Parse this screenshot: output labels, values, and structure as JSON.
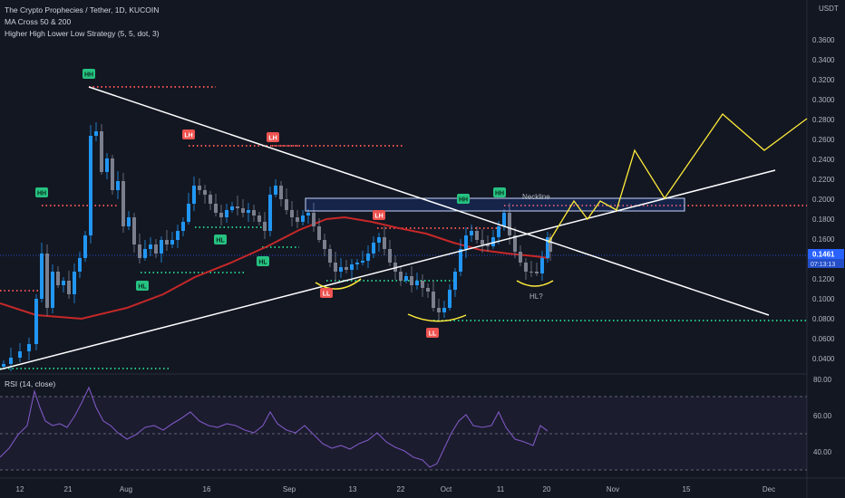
{
  "header": {
    "symbol_line": "The Crypto Prophecies / Tether, 1D, KUCOIN",
    "indicator_1": "MA Cross 50 & 200",
    "indicator_2": "Higher High Lower Low Strategy (5, 5, dot, 3)",
    "currency": "USDT"
  },
  "price_scale": {
    "ticks": [
      "0.3600",
      "0.3400",
      "0.3200",
      "0.3000",
      "0.2800",
      "0.2600",
      "0.2400",
      "0.2200",
      "0.2000",
      "0.1800",
      "0.1600",
      "0.1400",
      "0.1200",
      "0.1000",
      "0.0800",
      "0.0600",
      "0.0400"
    ],
    "last_price": "0.1461",
    "countdown": "07:13:13",
    "last_price_color": "#2962ff"
  },
  "rsi": {
    "label": "RSI (14, close)",
    "ticks": [
      "80.00",
      "60.00",
      "40.00"
    ]
  },
  "time_axis": {
    "labels": [
      "12",
      "21",
      "Aug",
      "16",
      "Sep",
      "13",
      "22",
      "Oct",
      "11",
      "20",
      "Nov",
      "15",
      "Dec"
    ]
  },
  "annotations": {
    "hh": "HH",
    "lh": "LH",
    "hl": "HL",
    "ll": "LL",
    "neckline": "Neckline",
    "hl_question": "HL?"
  },
  "colors": {
    "background": "#131722",
    "bull": "#2196f3",
    "bear": "#7b7f8d",
    "ma_long": "#c62828",
    "projection": "#ffeb3b",
    "hh_green": "#26c281",
    "lh_red": "#ef5350",
    "rsi_line": "#7e57c2"
  }
}
